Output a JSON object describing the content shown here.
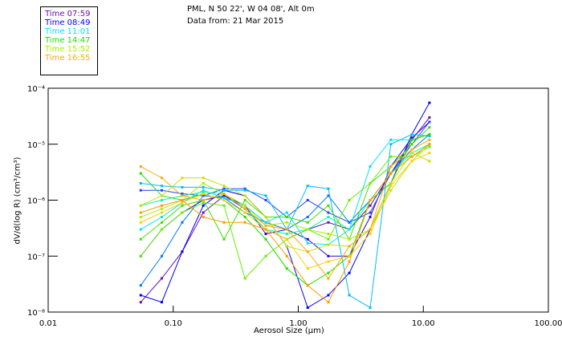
{
  "header": {
    "line1": "PML, N 50 22', W 04 08', Alt 0m",
    "line2": "Data from: 21 Mar 2015"
  },
  "legend": [
    {
      "label": "Time 07:59",
      "color": "#6a0dbb"
    },
    {
      "label": "Time 08:49",
      "color": "#0000ff"
    },
    {
      "label": "Time 11:01",
      "color": "#00e0ff"
    },
    {
      "label": "Time 14:47",
      "color": "#22dd00"
    },
    {
      "label": "Time 15:52",
      "color": "#aaee00"
    },
    {
      "label": "Time 16:55",
      "color": "#ffaa00"
    }
  ],
  "chart_data": {
    "type": "line",
    "xlabel": "Aerosol Size (μm)",
    "ylabel": "dV/d(log R) (cm³/cm³)",
    "xscale": "log",
    "yscale": "log",
    "xlim": [
      0.01,
      100
    ],
    "ylim": [
      1e-08,
      0.0001
    ],
    "xticks": [
      "0.01",
      "0.10",
      "1.00",
      "10.00",
      "100.00"
    ],
    "yticks": [
      "10⁻⁴",
      "10⁻⁵",
      "10⁻⁶",
      "10⁻⁷",
      "10⁻⁸"
    ],
    "x": [
      0.055,
      0.081,
      0.118,
      0.174,
      0.255,
      0.375,
      0.55,
      0.81,
      1.19,
      1.74,
      2.56,
      3.76,
      5.5,
      8.1,
      11.2
    ],
    "series": [
      {
        "color": "#6a0dbb",
        "values": [
          1.5e-08,
          4e-08,
          1.2e-07,
          6e-07,
          1.2e-06,
          7e-07,
          3e-07,
          2e-07,
          3e-07,
          4e-07,
          3e-07,
          8e-07,
          3e-06,
          1.2e-05,
          3e-05
        ]
      },
      {
        "color": "#3300cc",
        "values": [
          1e-07,
          3e-07,
          6e-07,
          1e-06,
          1.2e-06,
          8e-07,
          2.5e-07,
          3e-07,
          2e-07,
          1e-07,
          1e-07,
          5e-07,
          4e-06,
          1.3e-05,
          2.5e-05
        ]
      },
      {
        "color": "#0000ff",
        "values": [
          2e-08,
          1.5e-08,
          1.2e-07,
          8e-07,
          1.5e-06,
          1.2e-06,
          5e-07,
          1.5e-07,
          1.2e-08,
          2e-08,
          5e-08,
          3e-07,
          2e-06,
          1.5e-05,
          5.5e-05
        ]
      },
      {
        "color": "#2244ff",
        "values": [
          1.5e-06,
          1.5e-06,
          1.3e-06,
          1.2e-06,
          1.6e-06,
          1.6e-06,
          1e-06,
          5e-07,
          1e-06,
          6e-07,
          4e-07,
          6e-07,
          3e-06,
          1e-05,
          2.5e-05
        ]
      },
      {
        "color": "#0077ff",
        "values": [
          3e-08,
          1e-07,
          4e-07,
          1.2e-06,
          1.1e-06,
          6e-07,
          4e-07,
          3e-07,
          5e-07,
          1.2e-06,
          4e-07,
          1e-06,
          3e-06,
          8e-06,
          1.5e-05
        ]
      },
      {
        "color": "#00bbff",
        "values": [
          2e-06,
          1.8e-06,
          1.7e-06,
          1.7e-06,
          1.5e-06,
          1.5e-06,
          1.2e-06,
          3e-07,
          1.8e-06,
          1.6e-06,
          2e-08,
          1.2e-08,
          1e-05,
          1.5e-05,
          1.4e-05
        ]
      },
      {
        "color": "#00e0ff",
        "values": [
          3e-07,
          5e-07,
          9e-07,
          1.5e-06,
          1.1e-06,
          8e-07,
          4e-07,
          6e-07,
          1.7e-07,
          1.6e-07,
          3e-07,
          4e-06,
          1.2e-05,
          1.2e-05,
          1.5e-05
        ]
      },
      {
        "color": "#00ffaa",
        "values": [
          8e-07,
          1e-06,
          1.2e-06,
          1.4e-06,
          1.3e-06,
          7e-07,
          3e-07,
          2.5e-07,
          3e-07,
          5e-07,
          3e-07,
          1e-06,
          3e-06,
          7e-06,
          1e-05
        ]
      },
      {
        "color": "#22dd00",
        "values": [
          3e-06,
          1.2e-06,
          1e-06,
          1.3e-06,
          1e-06,
          5e-07,
          2e-07,
          6e-08,
          3e-08,
          5e-08,
          1e-07,
          1e-06,
          2e-06,
          1.2e-05,
          1.5e-05
        ]
      },
      {
        "color": "#44dd00",
        "values": [
          2e-07,
          4e-07,
          8e-07,
          1e-06,
          2e-07,
          1e-06,
          5e-07,
          5e-07,
          4e-07,
          8e-07,
          2e-07,
          2e-06,
          4e-06,
          1e-05,
          2e-05
        ]
      },
      {
        "color": "#66ee00",
        "values": [
          1e-07,
          3e-07,
          6e-07,
          9e-07,
          8e-07,
          4e-08,
          1e-07,
          2e-07,
          3e-07,
          2e-07,
          1e-06,
          2e-06,
          6e-06,
          6e-06,
          9e-06
        ]
      },
      {
        "color": "#aaee00",
        "values": [
          5e-07,
          7e-07,
          1e-06,
          2e-06,
          1.3e-06,
          8e-07,
          3.5e-07,
          4e-07,
          3e-07,
          2.5e-07,
          2e-07,
          3e-07,
          1.5e-06,
          5e-06,
          1e-05
        ]
      },
      {
        "color": "#ccdd00",
        "values": [
          8e-07,
          1.2e-06,
          2.5e-06,
          2.5e-06,
          1.8e-06,
          1.2e-06,
          5e-07,
          1.5e-07,
          1.2e-07,
          1.6e-07,
          1.5e-07,
          3e-07,
          2e-06,
          7e-06,
          5e-06
        ]
      },
      {
        "color": "#ffcc00",
        "values": [
          4e-07,
          6e-07,
          9e-07,
          1.3e-06,
          1e-06,
          6e-07,
          3e-07,
          2e-07,
          6e-08,
          8e-08,
          1e-07,
          2.5e-07,
          1.8e-06,
          5e-06,
          7e-06
        ]
      },
      {
        "color": "#ffaa00",
        "values": [
          4e-06,
          2.5e-06,
          1.2e-06,
          1e-06,
          1.3e-06,
          7e-07,
          3.5e-07,
          3e-07,
          1.2e-07,
          4e-08,
          1.5e-07,
          3e-07,
          4e-06,
          8e-06,
          1.2e-05
        ]
      },
      {
        "color": "#ff9900",
        "values": [
          6e-07,
          8e-07,
          1e-06,
          5e-07,
          4e-07,
          4e-07,
          3e-07,
          1e-07,
          3e-08,
          1.5e-08,
          8e-08,
          1e-06,
          3e-06,
          6e-06,
          1e-05
        ]
      }
    ]
  }
}
